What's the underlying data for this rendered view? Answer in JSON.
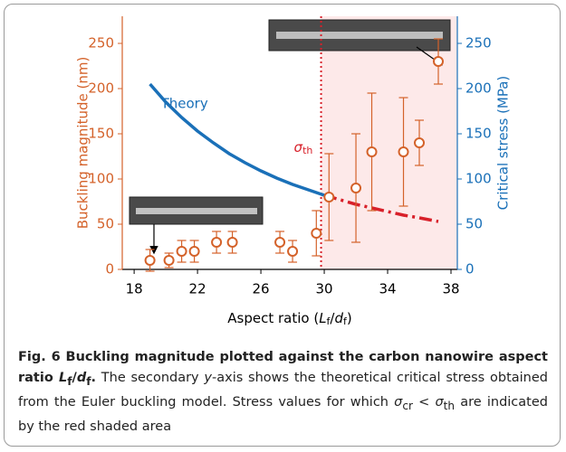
{
  "chart_data": {
    "type": "scatter",
    "x_label": [
      "Aspect ratio (",
      "L",
      "f",
      "/",
      "d",
      "f",
      ")"
    ],
    "y_label": "Buckling magnitude (nm)",
    "y2_label": "Critical stress (MPa)",
    "xlim": [
      17.25,
      38.4
    ],
    "xticks": [
      18,
      22,
      26,
      30,
      34,
      38
    ],
    "ylim": [
      0,
      280
    ],
    "yticks": [
      0,
      50,
      100,
      150,
      200,
      250
    ],
    "y2lim": [
      0,
      280
    ],
    "y2ticks": [
      0,
      50,
      100,
      150,
      200,
      250
    ],
    "y_color": "#d4622a",
    "y2_color": "#1a70b8",
    "points": {
      "color": "#d4622a",
      "x": [
        19,
        20.2,
        21,
        21.8,
        23.2,
        24.2,
        27.2,
        28,
        29.5,
        30.3,
        32,
        33,
        35,
        36,
        37.2
      ],
      "values": [
        10,
        10,
        20,
        20,
        30,
        30,
        30,
        20,
        40,
        80,
        90,
        130,
        130,
        140,
        230
      ],
      "errors": [
        12,
        8,
        12,
        12,
        12,
        12,
        12,
        12,
        25,
        48,
        60,
        65,
        60,
        25,
        25
      ]
    },
    "theory": {
      "name": "Theory",
      "color": "#1a70b8",
      "axis": "y2",
      "x": [
        19,
        20,
        21,
        22,
        23,
        24,
        25,
        26,
        27,
        28,
        29,
        30
      ],
      "values": [
        205,
        185,
        168,
        153,
        140,
        128,
        118,
        109,
        101,
        94,
        88,
        82
      ]
    },
    "extrapolation": {
      "color": "#d8202a",
      "axis": "y2",
      "dashed": true,
      "x": [
        30,
        31,
        32,
        33,
        34,
        35,
        36,
        37.2
      ],
      "values": [
        82,
        77,
        72,
        68,
        64,
        60,
        57,
        53
      ]
    },
    "threshold": {
      "x": 29.8,
      "symbol": "σ",
      "sub": "th",
      "color": "#d8202a",
      "shade": "#fde9e9"
    },
    "caption": [
      "Fig. 6 Buckling magnitude plotted against the carbon nanowire aspect ratio ",
      "L",
      "f",
      "/",
      "d",
      "f",
      ".",
      " The secondary ",
      "y",
      "-axis shows the theoretical critical stress obtained from the Euler buckling model. Stress values for which ",
      "σ",
      "cr",
      " < ",
      "σ",
      "th",
      " are indicated by the red shaded area"
    ]
  }
}
